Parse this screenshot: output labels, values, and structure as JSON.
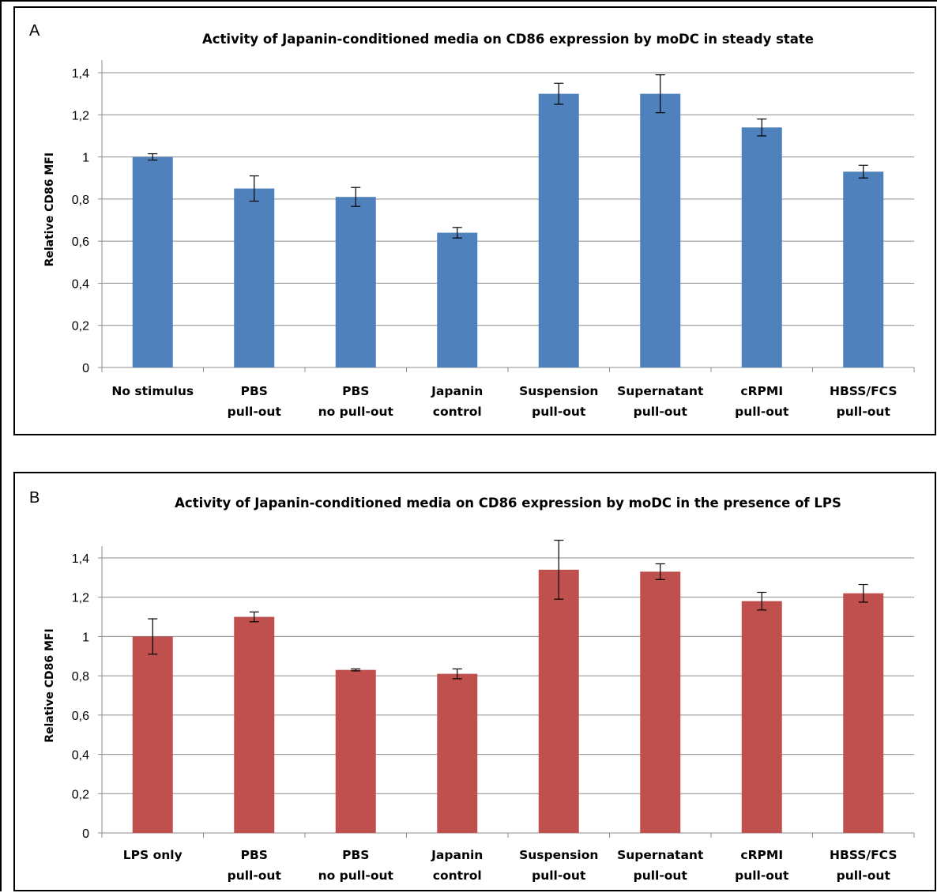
{
  "panels": [
    {
      "letter": "A",
      "color": "#4f81bd",
      "chart_data": {
        "type": "bar",
        "title": "Activity of Japanin-conditioned media on  CD86 expression by moDC in steady state",
        "xlabel": "",
        "ylabel": "Relative CD86 MFI",
        "ylim": [
          0,
          1.5
        ],
        "yticks": [
          0,
          0.2,
          0.4,
          0.6,
          0.8,
          1.0,
          1.2,
          1.4
        ],
        "ytick_labels": [
          "0",
          "0,2",
          "0,4",
          "0,6",
          "0,8",
          "1",
          "1,2",
          "1,4"
        ],
        "grid": true,
        "categories": [
          [
            "No stimulus"
          ],
          [
            "PBS",
            "pull-out"
          ],
          [
            "PBS",
            "no pull-out"
          ],
          [
            "Japanin",
            "control"
          ],
          [
            "Suspension",
            "pull-out"
          ],
          [
            "Supernatant",
            "pull-out"
          ],
          [
            "cRPMI",
            "pull-out"
          ],
          [
            "HBSS/FCS",
            "pull-out"
          ]
        ],
        "values": [
          1.0,
          0.85,
          0.81,
          0.64,
          1.3,
          1.3,
          1.14,
          0.93
        ],
        "errors": [
          0.015,
          0.06,
          0.045,
          0.025,
          0.05,
          0.09,
          0.04,
          0.03
        ]
      }
    },
    {
      "letter": "B",
      "color": "#c0504d",
      "chart_data": {
        "type": "bar",
        "title": "Activity of Japanin-conditioned media on  CD86 expression by moDC in the presence of LPS",
        "xlabel": "",
        "ylabel": "Relative CD86 MFI",
        "ylim": [
          0,
          1.5
        ],
        "yticks": [
          0,
          0.2,
          0.4,
          0.6,
          0.8,
          1.0,
          1.2,
          1.4
        ],
        "ytick_labels": [
          "0",
          "0,2",
          "0,4",
          "0,6",
          "0,8",
          "1",
          "1,2",
          "1,4"
        ],
        "grid": true,
        "categories": [
          [
            "LPS only"
          ],
          [
            "PBS",
            "pull-out"
          ],
          [
            "PBS",
            "no pull-out"
          ],
          [
            "Japanin",
            "control"
          ],
          [
            "Suspension",
            "pull-out"
          ],
          [
            "Supernatant",
            "pull-out"
          ],
          [
            "cRPMI",
            "pull-out"
          ],
          [
            "HBSS/FCS",
            "pull-out"
          ]
        ],
        "values": [
          1.0,
          1.1,
          0.83,
          0.81,
          1.34,
          1.33,
          1.18,
          1.22
        ],
        "errors": [
          0.09,
          0.025,
          0.005,
          0.025,
          0.15,
          0.04,
          0.045,
          0.045
        ]
      }
    }
  ]
}
